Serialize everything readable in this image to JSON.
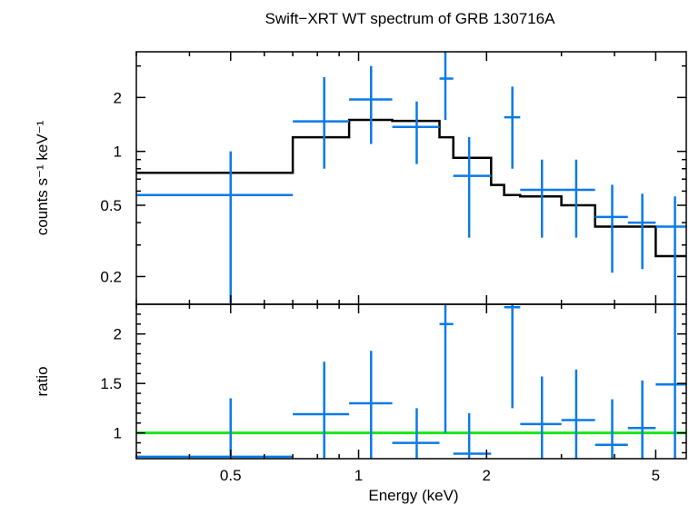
{
  "colors": {
    "data": "#0a7ae6",
    "model": "#000000",
    "ratio_line": "#19e619",
    "axes": "#000000"
  },
  "chart_data": [
    {
      "type": "scatter",
      "title": "Swift−XRT WT spectrum of GRB 130716A",
      "xlabel": "",
      "ylabel": "counts s⁻¹ keV⁻¹",
      "xscale": "log",
      "yscale": "log",
      "xlim": [
        0.3,
        5.9
      ],
      "ylim": [
        0.14,
        3.6
      ],
      "x_ticks": [],
      "y_ticks": [
        0.2,
        0.5,
        1,
        2
      ],
      "y_tick_labels": [
        "0.2",
        "0.5",
        "1",
        "2"
      ],
      "series": [
        {
          "kind": "data-with-errors",
          "points": [
            {
              "x": 0.5,
              "xlo": 0.3,
              "xhi": 0.7,
              "y": 0.57,
              "ylo": 0.13,
              "yhi": 1.0
            },
            {
              "x": 0.83,
              "xlo": 0.7,
              "xhi": 0.95,
              "y": 1.47,
              "ylo": 0.8,
              "yhi": 2.6
            },
            {
              "x": 1.07,
              "xlo": 0.95,
              "xhi": 1.2,
              "y": 1.95,
              "ylo": 1.1,
              "yhi": 3.0
            },
            {
              "x": 1.37,
              "xlo": 1.2,
              "xhi": 1.55,
              "y": 1.37,
              "ylo": 0.85,
              "yhi": 1.9
            },
            {
              "x": 1.6,
              "xlo": 1.55,
              "xhi": 1.67,
              "y": 2.55,
              "ylo": 1.5,
              "yhi": 3.8
            },
            {
              "x": 1.82,
              "xlo": 1.67,
              "xhi": 2.05,
              "y": 0.73,
              "ylo": 0.33,
              "yhi": 1.2
            },
            {
              "x": 2.3,
              "xlo": 2.2,
              "xhi": 2.4,
              "y": 1.55,
              "ylo": 0.8,
              "yhi": 2.3
            },
            {
              "x": 2.7,
              "xlo": 2.4,
              "xhi": 3.0,
              "y": 0.61,
              "ylo": 0.33,
              "yhi": 0.9
            },
            {
              "x": 3.25,
              "xlo": 3.0,
              "xhi": 3.6,
              "y": 0.61,
              "ylo": 0.33,
              "yhi": 0.9
            },
            {
              "x": 3.95,
              "xlo": 3.6,
              "xhi": 4.3,
              "y": 0.43,
              "ylo": 0.21,
              "yhi": 0.65
            },
            {
              "x": 4.65,
              "xlo": 4.3,
              "xhi": 5.0,
              "y": 0.4,
              "ylo": 0.22,
              "yhi": 0.58
            },
            {
              "x": 5.55,
              "xlo": 5.0,
              "xhi": 5.9,
              "y": 0.38,
              "ylo": 0.12,
              "yhi": 0.56
            }
          ]
        },
        {
          "kind": "model-step",
          "edges": [
            0.3,
            0.7,
            0.95,
            1.2,
            1.55,
            1.67,
            2.05,
            2.2,
            2.4,
            3.0,
            3.6,
            4.3,
            5.0,
            5.9
          ],
          "values": [
            0.76,
            1.2,
            1.5,
            1.48,
            1.2,
            0.92,
            0.65,
            0.57,
            0.56,
            0.5,
            0.38,
            0.38,
            0.26
          ]
        }
      ]
    },
    {
      "type": "scatter",
      "title": "",
      "xlabel": "Energy (keV)",
      "ylabel": "ratio",
      "xscale": "log",
      "yscale": "linear",
      "xlim": [
        0.3,
        5.9
      ],
      "ylim": [
        0.74,
        2.3
      ],
      "x_ticks": [
        0.5,
        1,
        2,
        5
      ],
      "x_tick_labels": [
        "0.5",
        "1",
        "2",
        "5"
      ],
      "y_ticks": [
        1,
        1.5,
        2
      ],
      "y_tick_labels": [
        "1",
        "1.5",
        "2"
      ],
      "series": [
        {
          "kind": "data-with-errors",
          "points": [
            {
              "x": 0.5,
              "xlo": 0.3,
              "xhi": 0.7,
              "y": 0.76,
              "ylo": 0.74,
              "yhi": 1.35
            },
            {
              "x": 0.83,
              "xlo": 0.7,
              "xhi": 0.95,
              "y": 1.19,
              "ylo": 0.74,
              "yhi": 1.72
            },
            {
              "x": 1.07,
              "xlo": 0.95,
              "xhi": 1.2,
              "y": 1.3,
              "ylo": 0.74,
              "yhi": 1.83
            },
            {
              "x": 1.37,
              "xlo": 1.2,
              "xhi": 1.55,
              "y": 0.9,
              "ylo": 0.74,
              "yhi": 1.25
            },
            {
              "x": 1.6,
              "xlo": 1.55,
              "xhi": 1.67,
              "y": 2.1,
              "ylo": 1.0,
              "yhi": 2.3
            },
            {
              "x": 1.82,
              "xlo": 1.67,
              "xhi": 2.05,
              "y": 0.79,
              "ylo": 0.74,
              "yhi": 1.2
            },
            {
              "x": 2.3,
              "xlo": 2.2,
              "xhi": 2.4,
              "y": 2.27,
              "ylo": 1.25,
              "yhi": 2.3
            },
            {
              "x": 2.7,
              "xlo": 2.4,
              "xhi": 3.0,
              "y": 1.09,
              "ylo": 0.74,
              "yhi": 1.57
            },
            {
              "x": 3.25,
              "xlo": 3.0,
              "xhi": 3.6,
              "y": 1.13,
              "ylo": 0.74,
              "yhi": 1.64
            },
            {
              "x": 3.95,
              "xlo": 3.6,
              "xhi": 4.3,
              "y": 0.88,
              "ylo": 0.74,
              "yhi": 1.34
            },
            {
              "x": 4.65,
              "xlo": 4.3,
              "xhi": 5.0,
              "y": 1.05,
              "ylo": 0.74,
              "yhi": 1.53
            },
            {
              "x": 5.55,
              "xlo": 5.0,
              "xhi": 5.9,
              "y": 1.49,
              "ylo": 0.74,
              "yhi": 2.3
            }
          ]
        },
        {
          "kind": "reference-line",
          "y": 1.0
        }
      ]
    }
  ]
}
